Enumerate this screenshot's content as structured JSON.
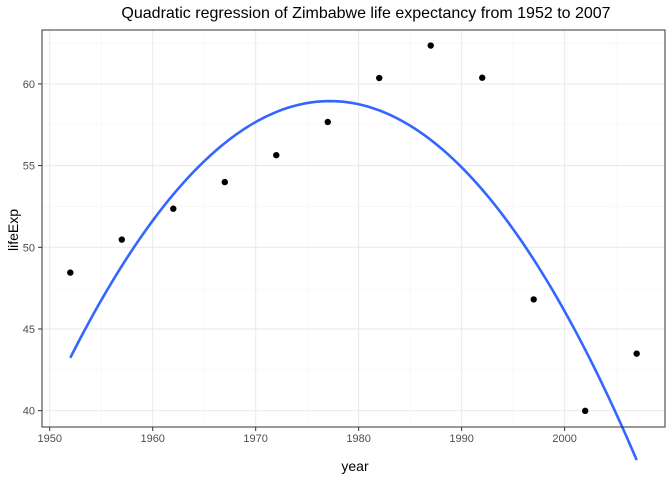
{
  "chart_data": {
    "type": "scatter",
    "title": "Quadratic regression of Zimbabwe life expectancy from 1952 to 2007",
    "xlabel": "year",
    "ylabel": "lifeExp",
    "xlim": [
      1949.25,
      2009.75
    ],
    "ylim": [
      39.0,
      63.3
    ],
    "x_ticks": [
      1950,
      1960,
      1970,
      1980,
      1990,
      2000
    ],
    "y_ticks": [
      40,
      45,
      50,
      55,
      60
    ],
    "grid": true,
    "series": [
      {
        "type": "scatter",
        "x": [
          1952,
          1957,
          1962,
          1967,
          1972,
          1977,
          1982,
          1987,
          1992,
          1997,
          2002,
          2007
        ],
        "y": [
          48.45,
          50.47,
          52.36,
          53.99,
          55.64,
          57.67,
          60.36,
          62.35,
          60.38,
          46.81,
          39.99,
          43.49
        ]
      },
      {
        "type": "line",
        "fit": "quadratic",
        "x_range": [
          1952,
          2007
        ],
        "coefficients": {
          "x0": 1977.2,
          "peak": 58.95,
          "a": -0.02474
        }
      }
    ],
    "colors": {
      "points": "#000000",
      "fit_line": "#3366FF",
      "grid_major": "#ebebeb",
      "grid_minor": "#f5f5f5",
      "panel_border": "#333333"
    }
  }
}
